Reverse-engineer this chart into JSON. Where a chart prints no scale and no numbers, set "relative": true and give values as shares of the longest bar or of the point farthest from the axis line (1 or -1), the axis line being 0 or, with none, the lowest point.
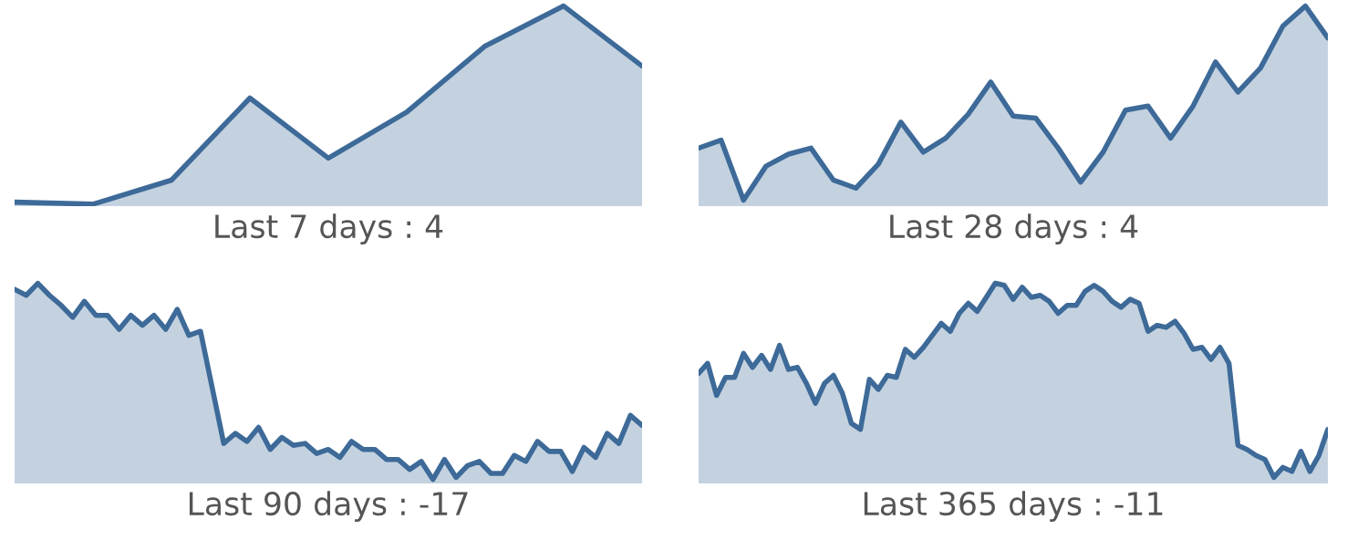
{
  "chart_data": [
    {
      "type": "area",
      "relative": true,
      "xlabel": "Last 7 days : 4",
      "categories": [
        null,
        null,
        null,
        null,
        null,
        null,
        null,
        null,
        null
      ],
      "series": [
        {
          "color": "#3d6a98",
          "values": [
            0.02,
            0.01,
            0.13,
            0.54,
            0.24,
            0.47,
            0.8,
            1.0,
            0.7
          ]
        }
      ]
    },
    {
      "type": "area",
      "relative": true,
      "xlabel": "Last 28 days : 4",
      "categories": [
        null,
        null,
        null,
        null,
        null,
        null,
        null,
        null,
        null,
        null,
        null,
        null,
        null,
        null,
        null,
        null,
        null,
        null,
        null,
        null,
        null,
        null,
        null,
        null,
        null,
        null,
        null,
        null,
        null
      ],
      "series": [
        {
          "color": "#3d6a98",
          "values": [
            0.29,
            0.33,
            0.03,
            0.2,
            0.26,
            0.29,
            0.13,
            0.09,
            0.21,
            0.42,
            0.27,
            0.34,
            0.46,
            0.62,
            0.45,
            0.44,
            0.29,
            0.12,
            0.27,
            0.48,
            0.5,
            0.34,
            0.5,
            0.72,
            0.57,
            0.69,
            0.9,
            1.0,
            0.84
          ]
        }
      ]
    },
    {
      "type": "area",
      "relative": true,
      "xlabel": "Last 90 days : -17",
      "categories": [
        null,
        null,
        null,
        null,
        null,
        null,
        null,
        null,
        null,
        null,
        null,
        null,
        null,
        null,
        null,
        null,
        null,
        null,
        null,
        null,
        null,
        null,
        null,
        null,
        null,
        null,
        null,
        null,
        null,
        null,
        null,
        null,
        null,
        null,
        null,
        null,
        null,
        null,
        null,
        null,
        null,
        null,
        null,
        null,
        null,
        null,
        null,
        null,
        null,
        null,
        null,
        null,
        null,
        null,
        null
      ],
      "series": [
        {
          "color": "#3d6a98",
          "values": [
            0.97,
            0.94,
            1.0,
            0.94,
            0.89,
            0.83,
            0.91,
            0.84,
            0.84,
            0.77,
            0.84,
            0.79,
            0.84,
            0.77,
            0.87,
            0.74,
            0.76,
            0.48,
            0.2,
            0.25,
            0.21,
            0.28,
            0.17,
            0.23,
            0.19,
            0.2,
            0.15,
            0.17,
            0.13,
            0.21,
            0.17,
            0.17,
            0.12,
            0.12,
            0.07,
            0.11,
            0.02,
            0.12,
            0.03,
            0.09,
            0.11,
            0.05,
            0.05,
            0.14,
            0.11,
            0.21,
            0.16,
            0.16,
            0.06,
            0.18,
            0.13,
            0.25,
            0.2,
            0.34,
            0.29
          ]
        }
      ]
    },
    {
      "type": "area",
      "relative": true,
      "xlabel": "Last 365 days : -11",
      "categories": [
        null,
        null,
        null,
        null,
        null,
        null,
        null,
        null,
        null,
        null,
        null,
        null,
        null,
        null,
        null,
        null,
        null,
        null,
        null,
        null,
        null,
        null,
        null,
        null,
        null,
        null,
        null,
        null,
        null,
        null,
        null,
        null,
        null,
        null,
        null,
        null,
        null,
        null,
        null,
        null,
        null,
        null,
        null,
        null,
        null,
        null,
        null,
        null,
        null,
        null,
        null,
        null,
        null,
        null,
        null,
        null,
        null,
        null,
        null,
        null,
        null,
        null,
        null,
        null,
        null,
        null,
        null,
        null,
        null,
        null,
        null
      ],
      "series": [
        {
          "color": "#3d6a98",
          "values": [
            0.55,
            0.6,
            0.44,
            0.53,
            0.53,
            0.65,
            0.58,
            0.64,
            0.57,
            0.69,
            0.57,
            0.58,
            0.5,
            0.4,
            0.5,
            0.54,
            0.45,
            0.3,
            0.27,
            0.52,
            0.47,
            0.54,
            0.53,
            0.67,
            0.63,
            0.68,
            0.74,
            0.8,
            0.76,
            0.85,
            0.9,
            0.86,
            0.93,
            1.0,
            0.99,
            0.92,
            0.98,
            0.93,
            0.94,
            0.91,
            0.85,
            0.89,
            0.89,
            0.96,
            0.99,
            0.96,
            0.91,
            0.88,
            0.92,
            0.9,
            0.76,
            0.79,
            0.78,
            0.81,
            0.75,
            0.67,
            0.68,
            0.62,
            0.68,
            0.6,
            0.19,
            0.17,
            0.14,
            0.12,
            0.03,
            0.08,
            0.06,
            0.16,
            0.06,
            0.14,
            0.27
          ]
        }
      ]
    }
  ]
}
